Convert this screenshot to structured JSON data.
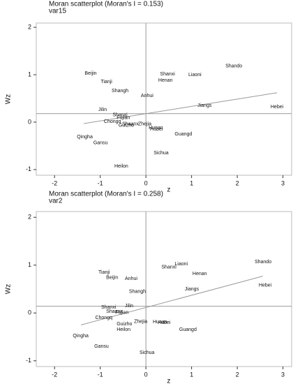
{
  "chart_data": [
    {
      "type": "scatter",
      "title": "Moran scatterplot (Moran's I = 0.153)",
      "subtitle": "var15",
      "x_label": "z",
      "y_label": "Wz",
      "labels": [
        "Shando",
        "Beijin",
        "Shanxi",
        "Liaoni",
        "Henan",
        "Tianji",
        "Shangh",
        "Anhui",
        "Jiangs",
        "Hebei",
        "Jilin",
        "Shanxi",
        "Fujian",
        "Chongq",
        "Guizho",
        "Shaanx",
        "Zhejia",
        "Hunan",
        "Hubei",
        "Guangd",
        "Qingha",
        "Gansu",
        "Sichua",
        "Heilon"
      ],
      "x": [
        1.74,
        -1.34,
        0.31,
        0.93,
        0.27,
        -0.99,
        -0.75,
        -0.11,
        1.13,
        2.73,
        -1.04,
        -0.73,
        -0.64,
        -0.92,
        -0.6,
        -0.52,
        -0.17,
        0.06,
        0.09,
        0.63,
        -1.51,
        -1.15,
        0.17,
        -0.69
      ],
      "values": [
        1.18,
        1.03,
        1.01,
        1.0,
        0.88,
        0.85,
        0.66,
        0.56,
        0.35,
        0.32,
        0.26,
        0.15,
        0.09,
        0.01,
        -0.07,
        -0.04,
        -0.04,
        -0.12,
        -0.15,
        -0.25,
        -0.31,
        -0.44,
        -0.65,
        -0.93
      ],
      "hline": 0.18,
      "vline": 0,
      "fit": {
        "x": [
          -1.36,
          2.87
        ],
        "y": [
          -0.03,
          0.62
        ]
      },
      "xlim": [
        -2.4,
        3.19
      ],
      "ylim": [
        -1.12,
        2.09
      ],
      "xticks": [
        -2,
        -1,
        0,
        1,
        2,
        3
      ],
      "yticks": [
        -1,
        0,
        1,
        2
      ],
      "color": "#999999"
    },
    {
      "type": "scatter",
      "title": "Moran scatterplot (Moran's I = 0.258)",
      "subtitle": "var2",
      "x_label": "z",
      "y_label": "Wz",
      "labels": [
        "Shando",
        "Liaoni",
        "Shanxi",
        "Henan",
        "Tianji",
        "Beijin",
        "Anhui",
        "Hebei",
        "Shangh",
        "Jiangs",
        "Shanxi",
        "Jilin",
        "Shaanx",
        "Fujian",
        "Chongq",
        "Zhejia",
        "Hunan",
        "Hubei",
        "Guizho",
        "Heilon",
        "Guangd",
        "Qingha",
        "Gansu",
        "Sichua"
      ],
      "x": [
        2.38,
        0.63,
        0.34,
        1.02,
        -1.04,
        -0.87,
        -0.46,
        2.47,
        -0.37,
        0.85,
        -0.98,
        -0.46,
        -0.87,
        -0.67,
        -1.11,
        -0.26,
        0.15,
        0.26,
        -0.64,
        -0.64,
        0.73,
        -1.6,
        -1.13,
        -0.14
      ],
      "values": [
        1.07,
        1.02,
        0.96,
        0.82,
        0.85,
        0.74,
        0.72,
        0.58,
        0.45,
        0.5,
        0.12,
        0.15,
        0.03,
        0.01,
        -0.1,
        -0.18,
        -0.19,
        -0.2,
        -0.23,
        -0.35,
        -0.35,
        -0.48,
        -0.7,
        -0.83
      ],
      "hline": 0.14,
      "vline": 0,
      "fit": {
        "x": [
          -1.42,
          2.56
        ],
        "y": [
          -0.25,
          0.77
        ]
      },
      "xlim": [
        -2.4,
        3.19
      ],
      "ylim": [
        -1.12,
        2.12
      ],
      "xticks": [
        -2,
        -1,
        0,
        1,
        2,
        3
      ],
      "yticks": [
        -1,
        0,
        1,
        2
      ],
      "color": "#999999"
    }
  ]
}
